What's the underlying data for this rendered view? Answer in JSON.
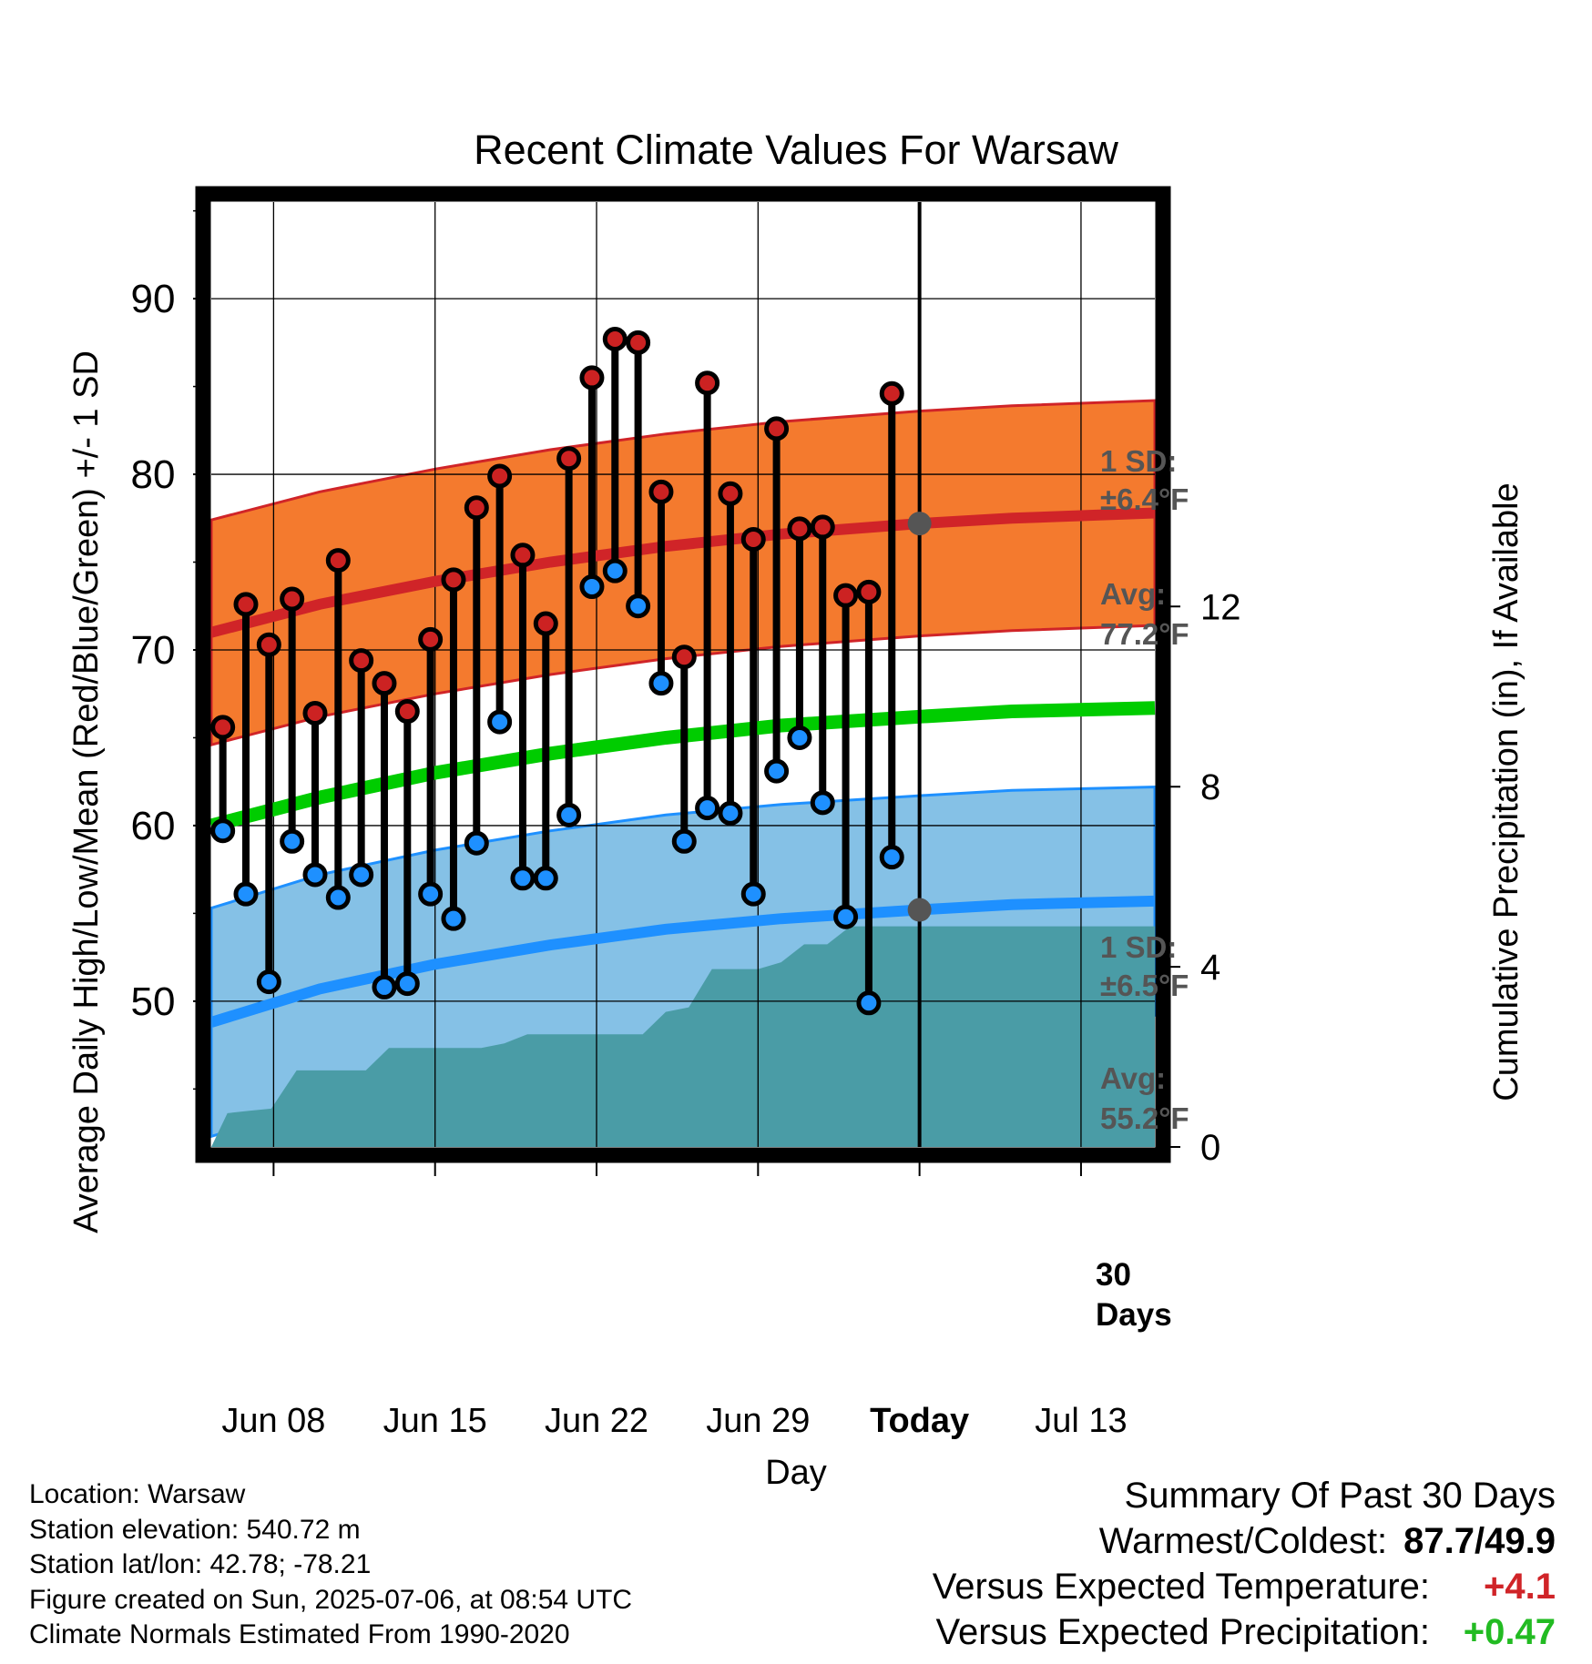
{
  "chart_data": {
    "type": "line",
    "title": "Recent Climate Values For Warsaw",
    "xlabel": "Day",
    "ylabel": "Average Daily High/Low/Mean (Red/Blue/Green) +/- 1 SD",
    "y2label": "Cumulative Precipitation (in), If Available",
    "x_tick_labels": [
      "Jun 08",
      "Jun 15",
      "Jun 22",
      "Jun 29",
      "Today",
      "Jul 13"
    ],
    "x_tick_days": [
      8,
      15,
      22,
      29,
      36,
      43
    ],
    "x_range_days": [
      5.3,
      46.2
    ],
    "today_day": 36,
    "ylim": [
      41.7,
      95.5
    ],
    "yticks": [
      50,
      60,
      70,
      80,
      90
    ],
    "y2lim": [
      0,
      20.98
    ],
    "y2ticks": [
      0,
      4,
      8,
      12
    ],
    "grid": true,
    "days": [
      5.8,
      6.8,
      7.8,
      8.8,
      9.8,
      10.8,
      11.8,
      12.8,
      13.8,
      14.8,
      15.8,
      16.8,
      17.8,
      18.8,
      19.8,
      20.8,
      21.8,
      22.8,
      23.8,
      24.8,
      25.8,
      26.8,
      27.8,
      28.8,
      29.8,
      30.8,
      31.8,
      32.8,
      33.8,
      34.8
    ],
    "highs": [
      65.6,
      72.6,
      70.3,
      72.9,
      66.4,
      75.1,
      69.4,
      68.1,
      66.5,
      70.6,
      74.0,
      78.1,
      79.9,
      75.4,
      71.5,
      80.9,
      85.5,
      87.7,
      87.5,
      79.0,
      69.6,
      85.2,
      78.9,
      76.3,
      82.6,
      76.9,
      77.0,
      73.1,
      73.3,
      84.6
    ],
    "lows": [
      59.7,
      56.1,
      51.1,
      59.1,
      57.2,
      55.9,
      57.2,
      50.8,
      51.0,
      56.1,
      54.7,
      59.0,
      65.9,
      57.0,
      57.0,
      60.6,
      73.6,
      74.5,
      72.5,
      68.1,
      59.1,
      61.0,
      60.7,
      56.1,
      63.1,
      65.0,
      61.3,
      54.8,
      49.9,
      58.2
    ],
    "normals": {
      "days": [
        5.3,
        10,
        15,
        20,
        25,
        30,
        36,
        40,
        46.2
      ],
      "high_mean": [
        71.0,
        72.6,
        73.9,
        75.0,
        75.9,
        76.6,
        77.2,
        77.5,
        77.8
      ],
      "high_sd": 6.4,
      "low_mean": [
        48.8,
        50.7,
        52.1,
        53.2,
        54.1,
        54.7,
        55.2,
        55.5,
        55.7
      ],
      "low_sd": 6.5,
      "mean": [
        60.0,
        61.6,
        63.0,
        64.1,
        65.0,
        65.7,
        66.2,
        66.5,
        66.7
      ]
    },
    "precip": {
      "days": [
        5.3,
        6.0,
        6.9,
        7.9,
        9.0,
        10.0,
        11.0,
        12.0,
        13.0,
        14.0,
        15.0,
        16.0,
        17.0,
        18.0,
        19.0,
        20.0,
        21.0,
        22.0,
        23.0,
        24.0,
        25.0,
        26.0,
        27.0,
        28.0,
        29.0,
        30.0,
        31.0,
        32.0,
        33.0,
        34.0,
        35.0,
        36.0,
        46.2
      ],
      "values": [
        0.0,
        0.75,
        0.8,
        0.85,
        1.7,
        1.7,
        1.7,
        1.7,
        2.2,
        2.2,
        2.2,
        2.2,
        2.2,
        2.3,
        2.5,
        2.5,
        2.5,
        2.5,
        2.5,
        2.5,
        3.0,
        3.1,
        3.95,
        3.95,
        3.95,
        4.1,
        4.5,
        4.5,
        4.9,
        4.9,
        4.9,
        4.9,
        4.9
      ]
    },
    "annotations": {
      "high_sd_label": "1 SD:",
      "high_sd_value": "±6.4°F",
      "high_avg_label": "Avg:",
      "high_avg_value": "77.2°F",
      "low_sd_label": "1 SD:",
      "low_sd_value": "±6.5°F",
      "low_avg_label": "Avg:",
      "low_avg_value": "55.2°F",
      "window_label_1": "30",
      "window_label_2": "Days"
    },
    "colors": {
      "high_band": "#f47a2e",
      "high_line": "#d02428",
      "low_band": "#85c1e6",
      "low_line": "#1e90ff",
      "mean_line": "#00cc00",
      "precip": "#4a9ca6",
      "high_marker": "#cc2222",
      "low_marker": "#1e90ff",
      "annotation": "#555555"
    }
  },
  "footer": {
    "location": "Location: Warsaw",
    "elevation": "Station elevation: 540.72 m",
    "latlon": "Station lat/lon: 42.78; -78.21",
    "created": "Figure created on Sun, 2025-07-06, at 08:54 UTC",
    "normals": "Climate Normals Estimated From 1990-2020"
  },
  "summary": {
    "title": "Summary Of Past 30 Days",
    "warmest_coldest_label": "Warmest/Coldest:",
    "warmest_coldest_value": "87.7/49.9",
    "temp_label": "Versus Expected Temperature:",
    "temp_value": "+4.1",
    "temp_color": "#d02428",
    "precip_label": "Versus Expected Precipitation:",
    "precip_value": "+0.47",
    "precip_color": "#22bb22"
  }
}
